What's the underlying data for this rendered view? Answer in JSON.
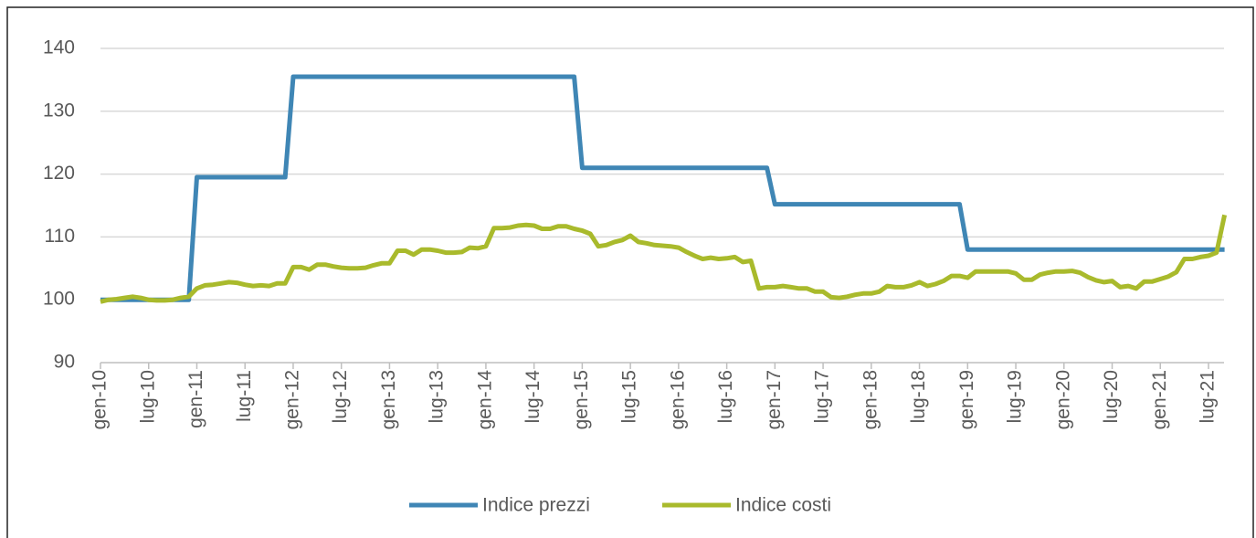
{
  "chart_data": {
    "type": "line",
    "categories": [
      "gen-10",
      null,
      null,
      null,
      null,
      null,
      "lug-10",
      null,
      null,
      null,
      null,
      null,
      "gen-11",
      null,
      null,
      null,
      null,
      null,
      "lug-11",
      null,
      null,
      null,
      null,
      null,
      "gen-12",
      null,
      null,
      null,
      null,
      null,
      "lug-12",
      null,
      null,
      null,
      null,
      null,
      "gen-13",
      null,
      null,
      null,
      null,
      null,
      "lug-13",
      null,
      null,
      null,
      null,
      null,
      "gen-14",
      null,
      null,
      null,
      null,
      null,
      "lug-14",
      null,
      null,
      null,
      null,
      null,
      "gen-15",
      null,
      null,
      null,
      null,
      null,
      "lug-15",
      null,
      null,
      null,
      null,
      null,
      "gen-16",
      null,
      null,
      null,
      null,
      null,
      "lug-16",
      null,
      null,
      null,
      null,
      null,
      "gen-17",
      null,
      null,
      null,
      null,
      null,
      "lug-17",
      null,
      null,
      null,
      null,
      null,
      "gen-18",
      null,
      null,
      null,
      null,
      null,
      "lug-18",
      null,
      null,
      null,
      null,
      null,
      "gen-19",
      null,
      null,
      null,
      null,
      null,
      "lug-19",
      null,
      null,
      null,
      null,
      null,
      "gen-20",
      null,
      null,
      null,
      null,
      null,
      "lug-20",
      null,
      null,
      null,
      null,
      null,
      "gen-21",
      null,
      null,
      null,
      null,
      null,
      "lug-21",
      null,
      null
    ],
    "series": [
      {
        "name": "Indice prezzi",
        "color": "#3f86b5",
        "values": [
          100,
          100,
          100,
          100,
          100,
          100,
          100,
          100,
          100,
          100,
          100,
          100,
          119.5,
          119.5,
          119.5,
          119.5,
          119.5,
          119.5,
          119.5,
          119.5,
          119.5,
          119.5,
          119.5,
          119.5,
          135.5,
          135.5,
          135.5,
          135.5,
          135.5,
          135.5,
          135.5,
          135.5,
          135.5,
          135.5,
          135.5,
          135.5,
          135.5,
          135.5,
          135.5,
          135.5,
          135.5,
          135.5,
          135.5,
          135.5,
          135.5,
          135.5,
          135.5,
          135.5,
          135.5,
          135.5,
          135.5,
          135.5,
          135.5,
          135.5,
          135.5,
          135.5,
          135.5,
          135.5,
          135.5,
          135.5,
          121,
          121,
          121,
          121,
          121,
          121,
          121,
          121,
          121,
          121,
          121,
          121,
          121,
          121,
          121,
          121,
          121,
          121,
          121,
          121,
          121,
          121,
          121,
          121,
          115.2,
          115.2,
          115.2,
          115.2,
          115.2,
          115.2,
          115.2,
          115.2,
          115.2,
          115.2,
          115.2,
          115.2,
          115.2,
          115.2,
          115.2,
          115.2,
          115.2,
          115.2,
          115.2,
          115.2,
          115.2,
          115.2,
          115.2,
          115.2,
          108,
          108,
          108,
          108,
          108,
          108,
          108,
          108,
          108,
          108,
          108,
          108,
          108,
          108,
          108,
          108,
          108,
          108,
          108,
          108,
          108,
          108,
          108,
          108,
          108,
          108,
          108,
          108,
          108,
          108,
          108,
          108,
          108
        ]
      },
      {
        "name": "Indice costi",
        "color": "#a9ba2c",
        "values": [
          99.7,
          100,
          100.1,
          100.3,
          100.5,
          100.3,
          100,
          99.9,
          99.9,
          100,
          100.3,
          100.5,
          101.8,
          102.3,
          102.4,
          102.6,
          102.8,
          102.7,
          102.4,
          102.2,
          102.3,
          102.2,
          102.6,
          102.6,
          105.2,
          105.2,
          104.8,
          105.6,
          105.6,
          105.3,
          105.1,
          105,
          105,
          105.1,
          105.5,
          105.8,
          105.8,
          107.8,
          107.8,
          107.2,
          108,
          108,
          107.8,
          107.5,
          107.5,
          107.6,
          108.3,
          108.2,
          108.5,
          111.4,
          111.4,
          111.5,
          111.8,
          111.9,
          111.8,
          111.3,
          111.3,
          111.7,
          111.7,
          111.3,
          111,
          110.5,
          108.5,
          108.7,
          109.2,
          109.5,
          110.2,
          109.2,
          109,
          108.7,
          108.6,
          108.5,
          108.3,
          107.6,
          107,
          106.5,
          106.7,
          106.5,
          106.6,
          106.8,
          106,
          106.2,
          101.8,
          102,
          102,
          102.2,
          102,
          101.8,
          101.8,
          101.3,
          101.3,
          100.4,
          100.3,
          100.5,
          100.8,
          101,
          101,
          101.3,
          102.2,
          102,
          102,
          102.3,
          102.8,
          102.2,
          102.5,
          103,
          103.8,
          103.8,
          103.5,
          104.5,
          104.5,
          104.5,
          104.5,
          104.5,
          104.2,
          103.2,
          103.2,
          104,
          104.3,
          104.5,
          104.5,
          104.6,
          104.3,
          103.6,
          103.1,
          102.8,
          103,
          102,
          102.2,
          101.8,
          102.9,
          102.9,
          103.3,
          103.7,
          104.4,
          106.5,
          106.5,
          106.8,
          107,
          107.5,
          113.5
        ]
      }
    ],
    "ylim": [
      90,
      140
    ],
    "yticks": [
      90,
      100,
      110,
      120,
      130,
      140
    ],
    "grid": true,
    "legend": "bottom"
  }
}
